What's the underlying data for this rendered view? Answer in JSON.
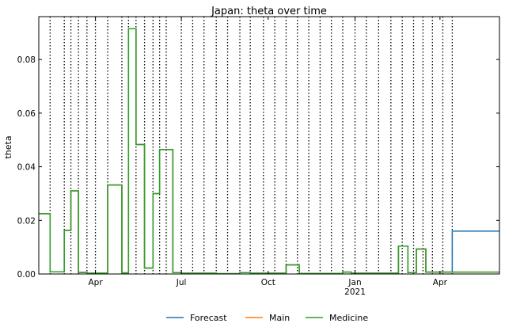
{
  "chart_data": {
    "type": "line",
    "title": "Japan: theta over time",
    "xlabel": "",
    "ylabel": "theta",
    "xlim": [
      "2020-02-01",
      "2021-06-03"
    ],
    "ylim": [
      0,
      0.096
    ],
    "grid": false,
    "legend_placement": "bottom-center",
    "x_ticks": [
      {
        "date": "2020-04-01",
        "label": "Apr",
        "sublabel": ""
      },
      {
        "date": "2020-07-01",
        "label": "Jul",
        "sublabel": ""
      },
      {
        "date": "2020-10-01",
        "label": "Oct",
        "sublabel": ""
      },
      {
        "date": "2021-01-01",
        "label": "Jan",
        "sublabel": "2021"
      },
      {
        "date": "2021-04-01",
        "label": "Apr",
        "sublabel": ""
      }
    ],
    "y_ticks": [
      0.0,
      0.02,
      0.04,
      0.06,
      0.08
    ],
    "y_tick_labels": [
      "0.00",
      "0.02",
      "0.04",
      "0.06",
      "0.08"
    ],
    "change_dates": [
      "2020-02-13",
      "2020-02-28",
      "2020-03-06",
      "2020-03-14",
      "2020-03-23",
      "2020-04-01",
      "2020-04-14",
      "2020-04-29",
      "2020-05-06",
      "2020-05-14",
      "2020-05-23",
      "2020-06-01",
      "2020-06-08",
      "2020-06-15",
      "2020-07-01",
      "2020-07-13",
      "2020-07-25",
      "2020-08-07",
      "2020-08-19",
      "2020-09-01",
      "2020-09-12",
      "2020-09-26",
      "2020-10-08",
      "2020-10-20",
      "2020-11-01",
      "2020-11-13",
      "2020-11-25",
      "2020-12-07",
      "2020-12-19",
      "2021-01-01",
      "2021-01-13",
      "2021-01-26",
      "2021-02-08",
      "2021-02-20",
      "2021-03-04",
      "2021-03-14",
      "2021-03-24",
      "2021-04-04",
      "2021-04-14"
    ],
    "colors": {
      "Forecast": "#1f77b4",
      "Main": "#ff7f0e",
      "Medicine": "#2ca02c"
    },
    "series": [
      {
        "name": "Forecast",
        "steps": [
          [
            "2020-02-01",
            0.0225
          ],
          [
            "2020-02-13",
            0.0008
          ],
          [
            "2020-02-28",
            0.0163
          ],
          [
            "2020-03-06",
            0.031
          ],
          [
            "2020-03-14",
            0.0006
          ],
          [
            "2020-03-23",
            0.0003
          ],
          [
            "2020-04-14",
            0.0332
          ],
          [
            "2020-04-29",
            0.0004
          ],
          [
            "2020-05-06",
            0.0915
          ],
          [
            "2020-05-14",
            0.0483
          ],
          [
            "2020-05-23",
            0.0022
          ],
          [
            "2020-06-01",
            0.03
          ],
          [
            "2020-06-08",
            0.0464
          ],
          [
            "2020-06-22",
            0.0005
          ],
          [
            "2020-07-01",
            0.0003
          ],
          [
            "2020-08-07",
            0.0001
          ],
          [
            "2020-09-01",
            0.0005
          ],
          [
            "2020-09-12",
            0.0003
          ],
          [
            "2020-10-20",
            0.0034
          ],
          [
            "2020-11-03",
            0.0002
          ],
          [
            "2020-12-19",
            0.0007
          ],
          [
            "2020-12-28",
            0.0003
          ],
          [
            "2021-02-16",
            0.0104
          ],
          [
            "2021-02-26",
            0.0005
          ],
          [
            "2021-03-07",
            0.0093
          ],
          [
            "2021-03-17",
            0.0007
          ],
          [
            "2021-04-14",
            0.016
          ],
          [
            "2021-06-03",
            0.016
          ]
        ]
      },
      {
        "name": "Main",
        "steps": [
          [
            "2020-02-01",
            0.0225
          ],
          [
            "2020-02-13",
            0.0008
          ],
          [
            "2020-02-28",
            0.0163
          ],
          [
            "2020-03-06",
            0.031
          ],
          [
            "2020-03-14",
            0.0006
          ],
          [
            "2020-03-23",
            0.0003
          ],
          [
            "2020-04-14",
            0.0332
          ],
          [
            "2020-04-29",
            0.0004
          ],
          [
            "2020-05-06",
            0.0915
          ],
          [
            "2020-05-14",
            0.0483
          ],
          [
            "2020-05-23",
            0.0022
          ],
          [
            "2020-06-01",
            0.03
          ],
          [
            "2020-06-08",
            0.0464
          ],
          [
            "2020-06-22",
            0.0005
          ],
          [
            "2020-07-01",
            0.0003
          ],
          [
            "2020-08-07",
            0.0001
          ],
          [
            "2020-09-01",
            0.0005
          ],
          [
            "2020-09-12",
            0.0003
          ],
          [
            "2020-10-20",
            0.0034
          ],
          [
            "2020-11-03",
            0.0002
          ],
          [
            "2020-12-19",
            0.0007
          ],
          [
            "2020-12-28",
            0.0003
          ],
          [
            "2021-02-16",
            0.0104
          ],
          [
            "2021-02-26",
            0.0005
          ],
          [
            "2021-03-07",
            0.0093
          ],
          [
            "2021-03-17",
            0.0007
          ],
          [
            "2021-06-03",
            0.0007
          ]
        ]
      },
      {
        "name": "Medicine",
        "steps": [
          [
            "2020-02-01",
            0.0225
          ],
          [
            "2020-02-13",
            0.0008
          ],
          [
            "2020-02-28",
            0.0163
          ],
          [
            "2020-03-06",
            0.031
          ],
          [
            "2020-03-14",
            0.0006
          ],
          [
            "2020-03-23",
            0.0003
          ],
          [
            "2020-04-14",
            0.0332
          ],
          [
            "2020-04-29",
            0.0004
          ],
          [
            "2020-05-06",
            0.0915
          ],
          [
            "2020-05-14",
            0.0483
          ],
          [
            "2020-05-23",
            0.0022
          ],
          [
            "2020-06-01",
            0.03
          ],
          [
            "2020-06-08",
            0.0464
          ],
          [
            "2020-06-22",
            0.0005
          ],
          [
            "2020-07-01",
            0.0003
          ],
          [
            "2020-08-07",
            0.0001
          ],
          [
            "2020-09-01",
            0.0005
          ],
          [
            "2020-09-12",
            0.0003
          ],
          [
            "2020-10-20",
            0.0034
          ],
          [
            "2020-11-03",
            0.0002
          ],
          [
            "2020-12-19",
            0.0007
          ],
          [
            "2020-12-28",
            0.0003
          ],
          [
            "2021-02-16",
            0.0104
          ],
          [
            "2021-02-26",
            0.0005
          ],
          [
            "2021-03-07",
            0.0093
          ],
          [
            "2021-03-17",
            0.0007
          ],
          [
            "2021-06-03",
            0.0007
          ]
        ]
      }
    ]
  }
}
